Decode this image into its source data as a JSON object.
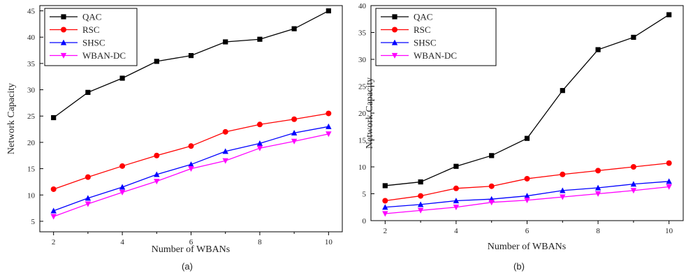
{
  "chart_data": [
    {
      "type": "line",
      "caption": "(a)",
      "xlabel": "Number of WBANs",
      "ylabel": "Network Capacity",
      "x": [
        2,
        3,
        4,
        5,
        6,
        7,
        8,
        9,
        10
      ],
      "xticks": [
        2,
        4,
        6,
        8,
        10
      ],
      "xlim": [
        1.6,
        10.4
      ],
      "ylim": [
        3,
        46
      ],
      "yticks": [
        5,
        10,
        15,
        20,
        25,
        30,
        35,
        40,
        45
      ],
      "legend_position": "top-left",
      "series": [
        {
          "name": "QAC",
          "color": "#000000",
          "marker": "square",
          "values": [
            24.7,
            29.5,
            32.2,
            35.4,
            36.5,
            39.1,
            39.6,
            41.6,
            45.0
          ]
        },
        {
          "name": "RSC",
          "color": "#ff0000",
          "marker": "circle",
          "values": [
            11.1,
            13.4,
            15.5,
            17.5,
            19.3,
            22.0,
            23.4,
            24.4,
            25.5
          ]
        },
        {
          "name": "SHSC",
          "color": "#0000ff",
          "marker": "triangle-up",
          "values": [
            7.0,
            9.4,
            11.5,
            13.9,
            15.8,
            18.3,
            19.8,
            21.8,
            23.0
          ]
        },
        {
          "name": "WBAN-DC",
          "color": "#ff00ff",
          "marker": "triangle-down",
          "values": [
            5.9,
            8.3,
            10.5,
            12.6,
            15.0,
            16.5,
            18.9,
            20.2,
            21.6
          ]
        }
      ]
    },
    {
      "type": "line",
      "caption": "(b)",
      "xlabel": "Number of WBANs",
      "ylabel": "Network Capacity",
      "x": [
        2,
        3,
        4,
        5,
        6,
        7,
        8,
        9,
        10
      ],
      "xticks": [
        2,
        4,
        6,
        8,
        10
      ],
      "xlim": [
        1.6,
        10.4
      ],
      "ylim": [
        0,
        40
      ],
      "yticks": [
        0,
        5,
        10,
        15,
        20,
        25,
        30,
        35,
        40
      ],
      "legend_position": "top-left",
      "series": [
        {
          "name": "QAC",
          "color": "#000000",
          "marker": "square",
          "values": [
            6.5,
            7.2,
            10.1,
            12.1,
            15.3,
            24.2,
            31.8,
            34.1,
            38.3
          ]
        },
        {
          "name": "RSC",
          "color": "#ff0000",
          "marker": "circle",
          "values": [
            3.7,
            4.6,
            6.0,
            6.4,
            7.8,
            8.6,
            9.3,
            10.0,
            10.7
          ]
        },
        {
          "name": "SHSC",
          "color": "#0000ff",
          "marker": "triangle-up",
          "values": [
            2.5,
            3.0,
            3.7,
            4.0,
            4.6,
            5.6,
            6.1,
            6.8,
            7.3
          ]
        },
        {
          "name": "WBAN-DC",
          "color": "#ff00ff",
          "marker": "triangle-down",
          "values": [
            1.3,
            1.9,
            2.5,
            3.4,
            3.8,
            4.4,
            5.0,
            5.6,
            6.3
          ]
        }
      ]
    }
  ]
}
